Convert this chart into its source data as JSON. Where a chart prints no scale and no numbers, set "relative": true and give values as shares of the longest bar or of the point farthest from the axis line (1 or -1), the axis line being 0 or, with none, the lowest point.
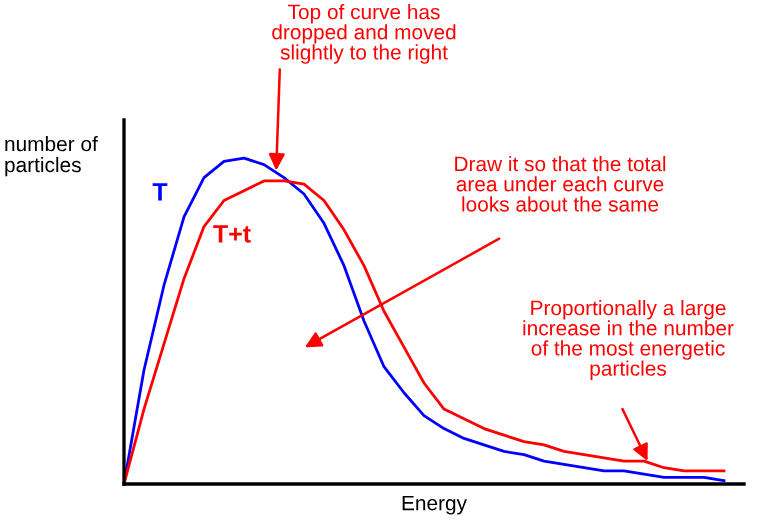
{
  "chart_data": {
    "type": "line",
    "relative": true,
    "xlabel": "Energy",
    "ylabel": "number of\nparticles",
    "categories": [
      null,
      null,
      null,
      null,
      null,
      null,
      null,
      null,
      null,
      null,
      null,
      null,
      null,
      null,
      null,
      null,
      null,
      null,
      null,
      null,
      null,
      null,
      null,
      null,
      null,
      null,
      null,
      null,
      null,
      null,
      null
    ],
    "series": [
      {
        "name": "T",
        "color": "#0000ff",
        "values": [
          0,
          0.35,
          0.61,
          0.82,
          0.94,
          0.99,
          1,
          0.98,
          0.94,
          0.89,
          0.8,
          0.67,
          0.5,
          0.36,
          0.28,
          0.21,
          0.17,
          0.14,
          0.12,
          0.1,
          0.09,
          0.07,
          0.06,
          0.05,
          0.04,
          0.04,
          0.03,
          0.02,
          0.02,
          0.02,
          0.01
        ]
      },
      {
        "name": "T+t",
        "color": "#ff0000",
        "values": [
          0,
          0.23,
          0.43,
          0.63,
          0.79,
          0.87,
          0.9,
          0.93,
          0.93,
          0.92,
          0.87,
          0.78,
          0.67,
          0.53,
          0.42,
          0.31,
          0.23,
          0.2,
          0.17,
          0.15,
          0.13,
          0.12,
          0.1,
          0.09,
          0.08,
          0.07,
          0.07,
          0.05,
          0.04,
          0.04,
          0.04
        ]
      }
    ],
    "annotations": [
      "Top of curve has\ndropped and moved\nslightly to the right",
      "Draw it so that the total\narea under each curve\nlooks about the same",
      "Proportionally a large\nincrease in the number\nof the most energetic\nparticles"
    ]
  }
}
